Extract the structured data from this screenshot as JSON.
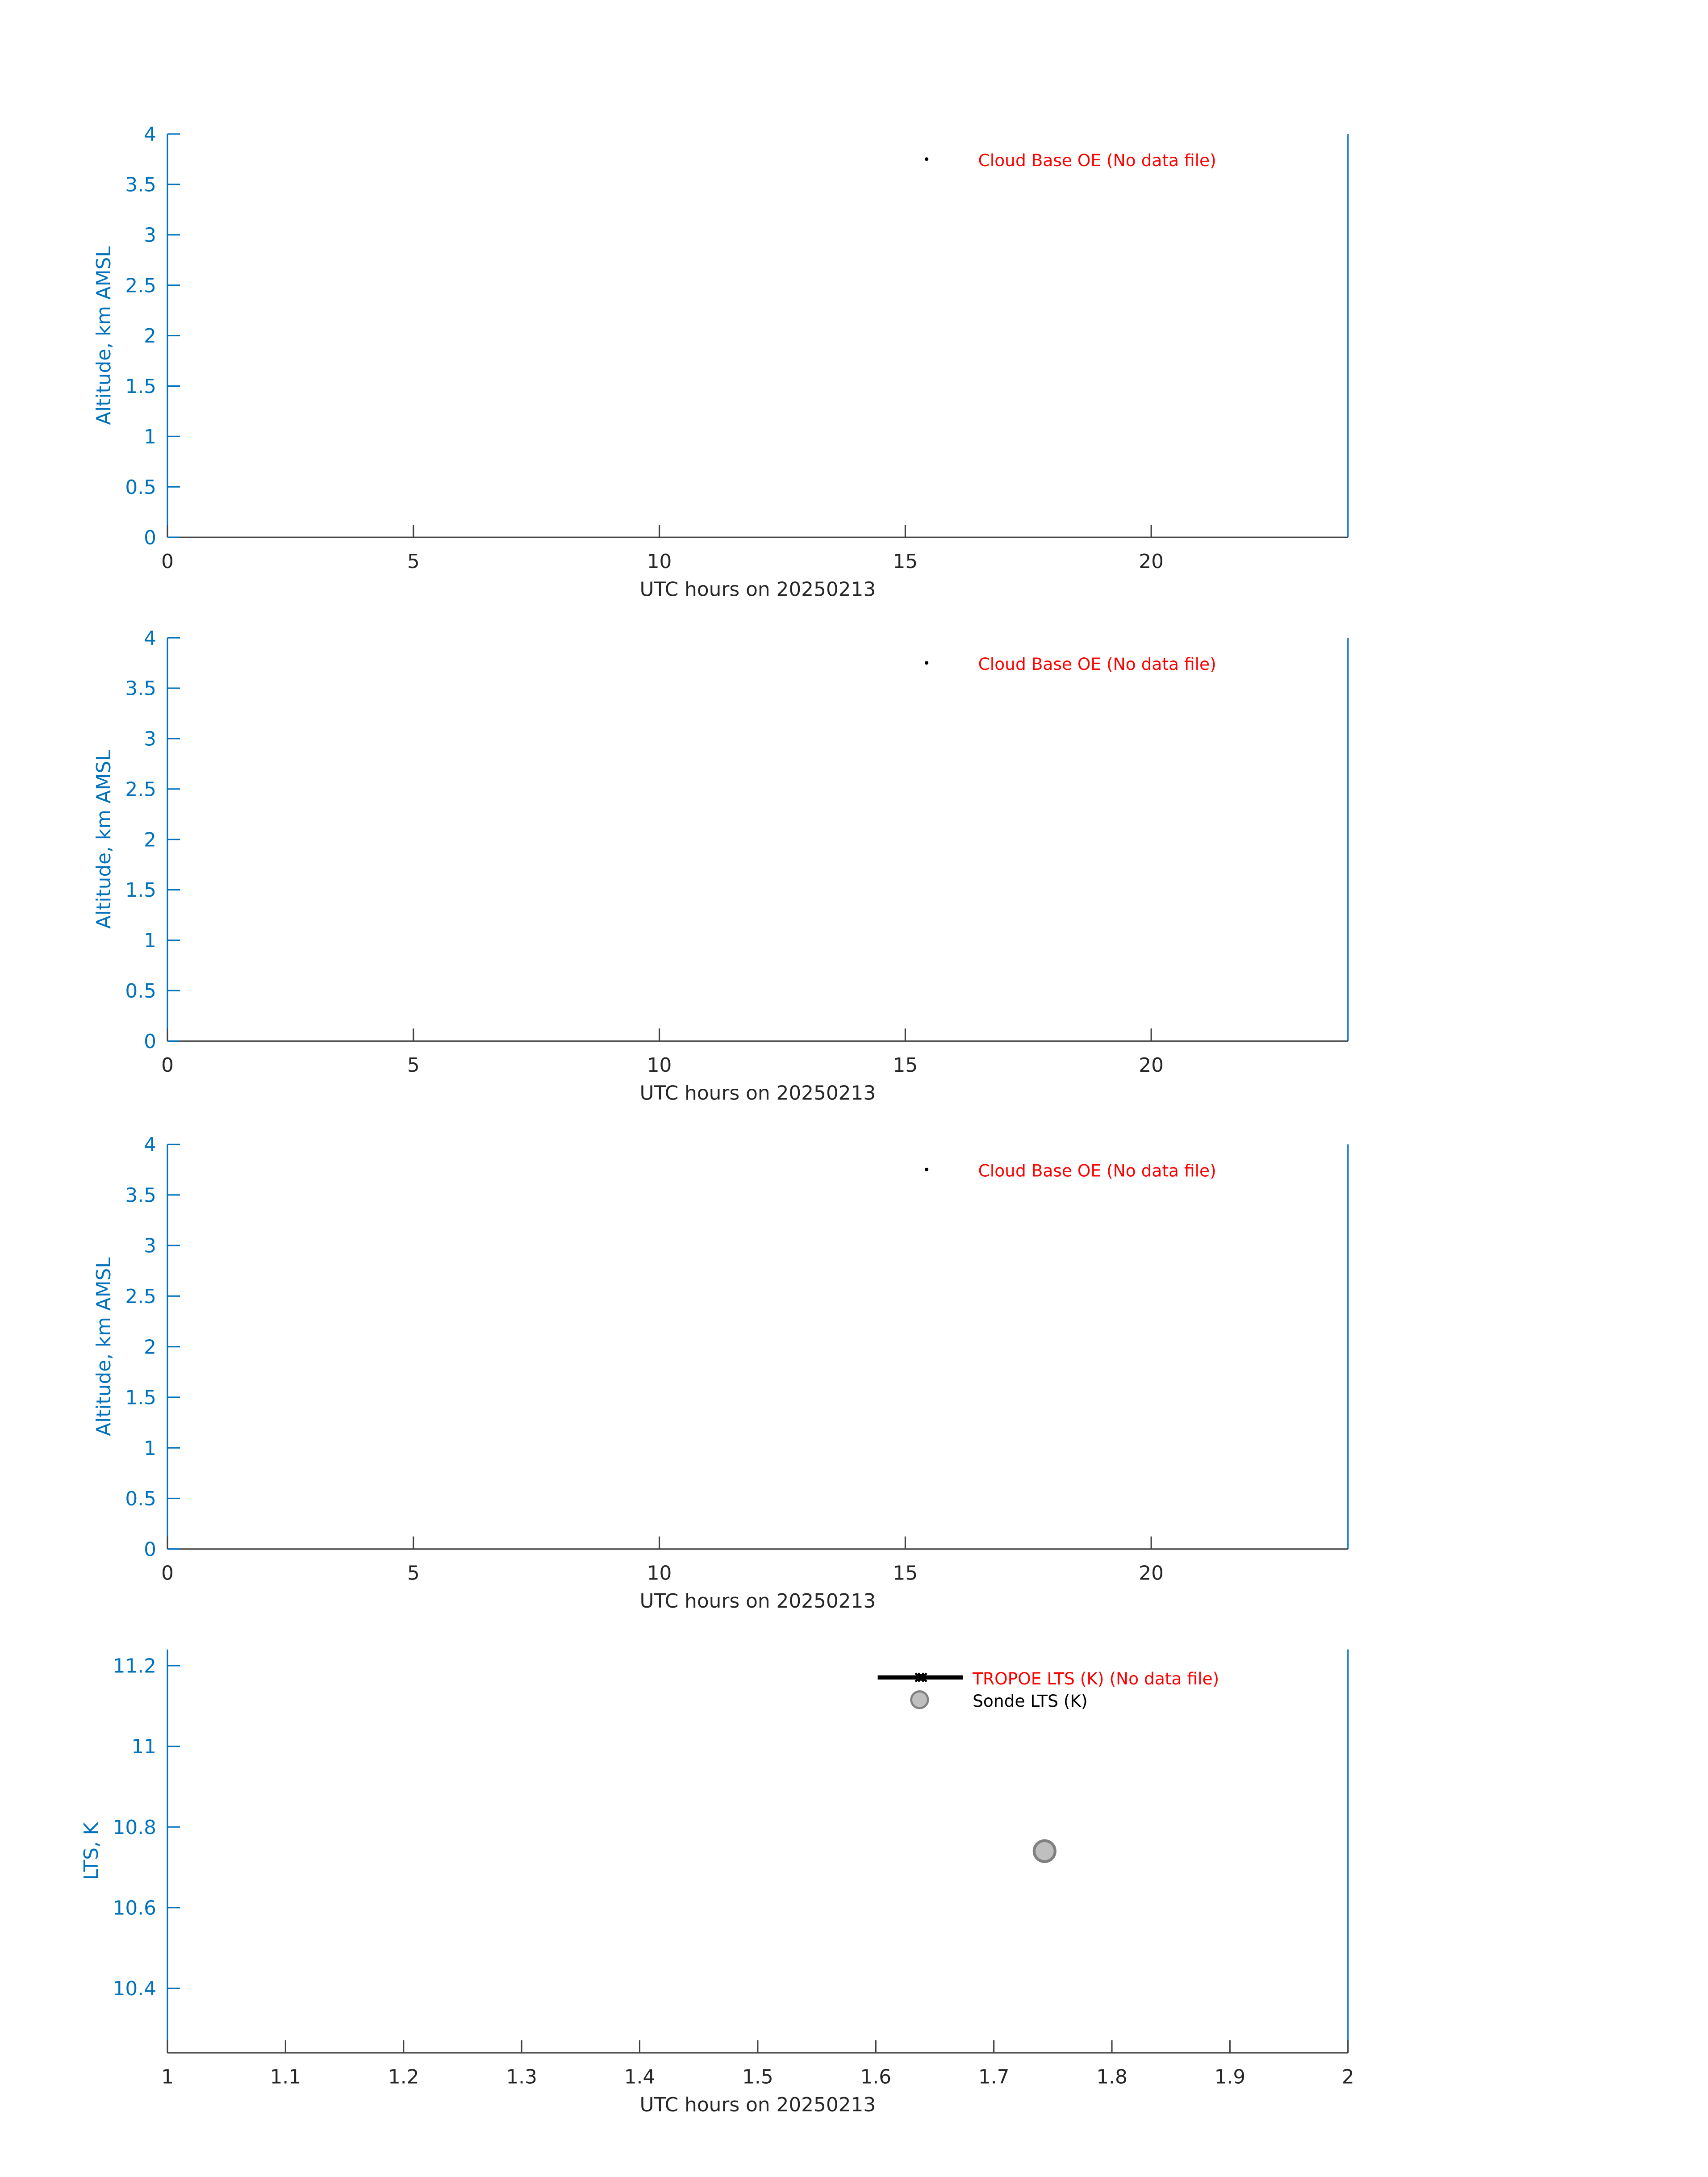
{
  "colors": {
    "axis": "#0072BD",
    "xaxis": "#404040",
    "no_data": "#FF0000",
    "text": "#262626",
    "sonde_fill": "#BFBFBF",
    "sonde_edge": "#808080"
  },
  "chart_data": [
    {
      "type": "scatter",
      "xlabel": "UTC hours on 20250213",
      "ylabel": "Altitude, km AMSL",
      "xlim": [
        0,
        24
      ],
      "ylim": [
        0,
        4
      ],
      "xticks": [
        "0",
        "5",
        "10",
        "15",
        "20"
      ],
      "yticks": [
        "0",
        "0.5",
        "1",
        "1.5",
        "2",
        "2.5",
        "3",
        "3.5",
        "4"
      ],
      "grid": false,
      "legend": {
        "placement": "top-right",
        "entries": [
          {
            "label": "Cloud Base OE (No data file)",
            "marker": "dot",
            "color": "#FF0000"
          }
        ]
      },
      "series": []
    },
    {
      "type": "scatter",
      "xlabel": "UTC hours on 20250213",
      "ylabel": "Altitude, km AMSL",
      "xlim": [
        0,
        24
      ],
      "ylim": [
        0,
        4
      ],
      "xticks": [
        "0",
        "5",
        "10",
        "15",
        "20"
      ],
      "yticks": [
        "0",
        "0.5",
        "1",
        "1.5",
        "2",
        "2.5",
        "3",
        "3.5",
        "4"
      ],
      "grid": false,
      "legend": {
        "placement": "top-right",
        "entries": [
          {
            "label": "Cloud Base OE (No data file)",
            "marker": "dot",
            "color": "#FF0000"
          }
        ]
      },
      "series": []
    },
    {
      "type": "scatter",
      "xlabel": "UTC hours on 20250213",
      "ylabel": "Altitude, km AMSL",
      "xlim": [
        0,
        24
      ],
      "ylim": [
        0,
        4
      ],
      "xticks": [
        "0",
        "5",
        "10",
        "15",
        "20"
      ],
      "yticks": [
        "0",
        "0.5",
        "1",
        "1.5",
        "2",
        "2.5",
        "3",
        "3.5",
        "4"
      ],
      "grid": false,
      "legend": {
        "placement": "top-right",
        "entries": [
          {
            "label": "Cloud Base OE (No data file)",
            "marker": "dot",
            "color": "#FF0000"
          }
        ]
      },
      "series": []
    },
    {
      "type": "scatter",
      "xlabel": "UTC hours on 20250213",
      "ylabel": "LTS, K",
      "xlim": [
        1,
        2
      ],
      "ylim": [
        10.24,
        11.24
      ],
      "xticks": [
        "1",
        "1.1",
        "1.2",
        "1.3",
        "1.4",
        "1.5",
        "1.6",
        "1.7",
        "1.8",
        "1.9",
        "2"
      ],
      "yticks": [
        "10.4",
        "10.6",
        "10.8",
        "11",
        "11.2"
      ],
      "grid": false,
      "legend": {
        "placement": "top-right",
        "entries": [
          {
            "label": "TROPOE LTS (K) (No data file)",
            "marker": "line-x",
            "color": "#FF0000"
          },
          {
            "label": "Sonde LTS (K)",
            "marker": "circle",
            "color": "#000000"
          }
        ]
      },
      "series": [
        {
          "name": "Sonde LTS (K)",
          "x": [
            1.743
          ],
          "y": [
            10.74
          ]
        }
      ]
    }
  ]
}
